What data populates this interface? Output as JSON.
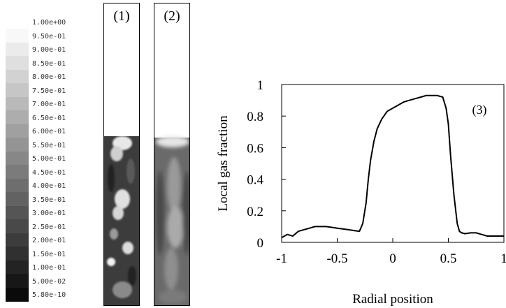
{
  "colorbar": {
    "labels": [
      "1.00e+00",
      "9.50e-01",
      "9.00e-01",
      "8.50e-01",
      "8.00e-01",
      "7.50e-01",
      "7.00e-01",
      "6.50e-01",
      "6.00e-01",
      "5.50e-01",
      "5.00e-01",
      "4.50e-01",
      "4.00e-01",
      "3.50e-01",
      "3.00e-01",
      "2.50e-01",
      "2.00e-01",
      "1.50e-01",
      "1.00e-01",
      "5.00e-02",
      "5.80e-10"
    ]
  },
  "panels": [
    {
      "label": "(1)"
    },
    {
      "label": "(2)"
    }
  ],
  "chart_data": {
    "type": "line",
    "title": "",
    "xlabel": "Radial position",
    "ylabel": "Local gas fraction",
    "annotation": "(3)",
    "xlim": [
      -1,
      1
    ],
    "ylim": [
      0,
      1
    ],
    "xticks": [
      "-1",
      "-0.5",
      "0",
      "0.5",
      "1"
    ],
    "yticks": [
      "0",
      "0.2",
      "0.4",
      "0.6",
      "0.8",
      "1"
    ],
    "grid": false,
    "series": [
      {
        "x": [
          -1.0,
          -0.95,
          -0.9,
          -0.85,
          -0.8,
          -0.75,
          -0.7,
          -0.65,
          -0.6,
          -0.55,
          -0.5,
          -0.45,
          -0.4,
          -0.35,
          -0.3,
          -0.27,
          -0.24,
          -0.22,
          -0.2,
          -0.17,
          -0.14,
          -0.1,
          -0.05,
          0.0,
          0.05,
          0.1,
          0.15,
          0.2,
          0.25,
          0.3,
          0.35,
          0.4,
          0.45,
          0.48,
          0.5,
          0.52,
          0.55,
          0.58,
          0.6,
          0.62,
          0.65,
          0.7,
          0.75,
          0.8,
          0.85,
          0.9,
          0.95,
          1.0
        ],
        "y": [
          0.03,
          0.05,
          0.04,
          0.07,
          0.08,
          0.09,
          0.1,
          0.1,
          0.1,
          0.095,
          0.09,
          0.085,
          0.08,
          0.075,
          0.07,
          0.12,
          0.25,
          0.4,
          0.52,
          0.64,
          0.72,
          0.78,
          0.83,
          0.85,
          0.87,
          0.89,
          0.9,
          0.91,
          0.92,
          0.93,
          0.93,
          0.93,
          0.92,
          0.85,
          0.75,
          0.55,
          0.3,
          0.12,
          0.07,
          0.06,
          0.055,
          0.06,
          0.06,
          0.05,
          0.04,
          0.04,
          0.04,
          0.04
        ]
      }
    ]
  }
}
